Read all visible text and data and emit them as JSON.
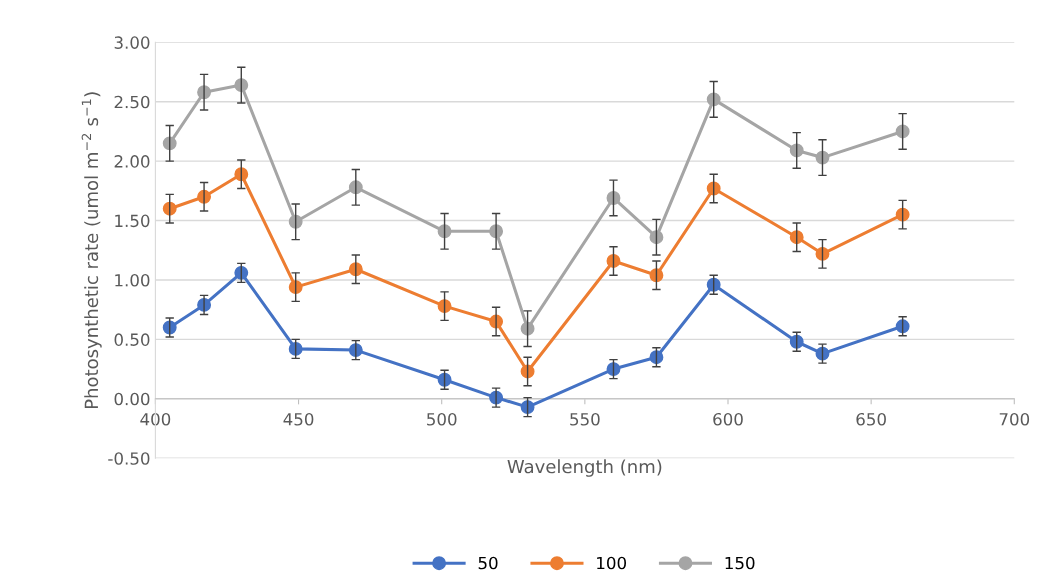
{
  "chart_data": {
    "type": "line",
    "xlabel": "Wavelength (nm)",
    "ylabel": "Photosynthetic rate (umol m$^{−2}$ s$^{−1}$)",
    "x": [
      405,
      417,
      430,
      449,
      470,
      501,
      519,
      530,
      560,
      575,
      595,
      624,
      633,
      661
    ],
    "series": [
      {
        "name": "50",
        "color": "#4472c4",
        "values": [
          0.6,
          0.79,
          1.06,
          0.42,
          0.41,
          0.16,
          0.01,
          -0.07,
          0.25,
          0.35,
          0.96,
          0.48,
          0.38,
          0.61
        ],
        "errors": [
          0.08,
          0.08,
          0.08,
          0.08,
          0.08,
          0.08,
          0.08,
          0.08,
          0.08,
          0.08,
          0.08,
          0.08,
          0.08,
          0.08
        ]
      },
      {
        "name": "100",
        "color": "#ed7d31",
        "values": [
          1.6,
          1.7,
          1.89,
          0.94,
          1.09,
          0.78,
          0.65,
          0.23,
          1.16,
          1.04,
          1.77,
          1.36,
          1.22,
          1.55
        ],
        "errors": [
          0.12,
          0.12,
          0.12,
          0.12,
          0.12,
          0.12,
          0.12,
          0.12,
          0.12,
          0.12,
          0.12,
          0.12,
          0.12,
          0.12
        ]
      },
      {
        "name": "150",
        "color": "#a5a5a5",
        "values": [
          2.15,
          2.58,
          2.64,
          1.49,
          1.78,
          1.41,
          1.41,
          0.59,
          1.69,
          1.36,
          2.52,
          2.09,
          2.03,
          2.25
        ],
        "errors": [
          0.15,
          0.15,
          0.15,
          0.15,
          0.15,
          0.15,
          0.15,
          0.15,
          0.15,
          0.15,
          0.15,
          0.15,
          0.15,
          0.15
        ]
      }
    ],
    "xlim": [
      400,
      700
    ],
    "xticks": [
      400,
      450,
      500,
      550,
      600,
      650,
      700
    ],
    "ylim": [
      -0.5,
      3.0
    ],
    "yticks": [
      {
        "value": -0.5,
        "label": "-0.50"
      },
      {
        "value": 0,
        "label": "0.00"
      },
      {
        "value": 0.5,
        "label": "0.50"
      },
      {
        "value": 1.0,
        "label": "1.00"
      },
      {
        "value": 1.5,
        "label": "1.50"
      },
      {
        "value": 2.0,
        "label": "2.00"
      },
      {
        "value": 2.5,
        "label": "2.50"
      },
      {
        "value": 3.0,
        "label": "3.00"
      }
    ],
    "grid": "y",
    "legend": "bottom",
    "marker": "circle",
    "line_style": "solid"
  }
}
